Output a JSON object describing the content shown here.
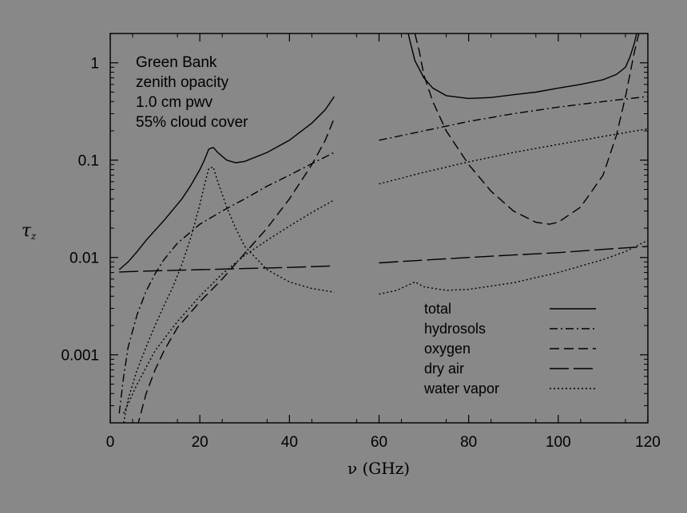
{
  "chart_data": {
    "type": "line",
    "xlabel": "ν  (GHz)",
    "ylabel": "τ",
    "ylabel_sub": "z",
    "y_scale": "log",
    "xlim": [
      0,
      120
    ],
    "ylim": [
      0.0002,
      2
    ],
    "x_ticks": [
      0,
      20,
      40,
      60,
      80,
      100,
      120
    ],
    "y_ticks": [
      {
        "value": 0.001,
        "label": "0.001"
      },
      {
        "value": 0.01,
        "label": "0.01"
      },
      {
        "value": 0.1,
        "label": "0.1"
      },
      {
        "value": 1,
        "label": "1"
      }
    ],
    "annotation": [
      "Green Bank",
      "zenith opacity",
      "1.0 cm pwv",
      "55% cloud cover"
    ],
    "legend_position": "bottom-right",
    "series": [
      {
        "name": "total",
        "dash": "solid",
        "segments": [
          [
            [
              2,
              0.0075
            ],
            [
              4,
              0.009
            ],
            [
              6,
              0.0115
            ],
            [
              8,
              0.015
            ],
            [
              10,
              0.019
            ],
            [
              12,
              0.024
            ],
            [
              14,
              0.031
            ],
            [
              16,
              0.04
            ],
            [
              18,
              0.055
            ],
            [
              20,
              0.08
            ],
            [
              21,
              0.1
            ],
            [
              22,
              0.13
            ],
            [
              23,
              0.135
            ],
            [
              24,
              0.12
            ],
            [
              26,
              0.1
            ],
            [
              28,
              0.094
            ],
            [
              30,
              0.097
            ],
            [
              35,
              0.12
            ],
            [
              40,
              0.16
            ],
            [
              45,
              0.24
            ],
            [
              48,
              0.33
            ],
            [
              50,
              0.45
            ]
          ],
          [
            [
              66.5,
              2.0
            ],
            [
              67,
              1.6
            ],
            [
              68,
              1.05
            ],
            [
              70,
              0.7
            ],
            [
              72,
              0.55
            ],
            [
              75,
              0.46
            ],
            [
              80,
              0.43
            ],
            [
              85,
              0.44
            ],
            [
              90,
              0.47
            ],
            [
              95,
              0.5
            ],
            [
              100,
              0.55
            ],
            [
              105,
              0.6
            ],
            [
              110,
              0.67
            ],
            [
              113,
              0.76
            ],
            [
              115,
              0.9
            ],
            [
              116,
              1.15
            ],
            [
              117,
              1.6
            ],
            [
              117.5,
              2.0
            ]
          ]
        ]
      },
      {
        "name": "hydrosols",
        "dash": "10,4,2,4",
        "segments": [
          [
            [
              2,
              0.00025
            ],
            [
              3,
              0.0006
            ],
            [
              4,
              0.0012
            ],
            [
              6,
              0.0026
            ],
            [
              8,
              0.0045
            ],
            [
              10,
              0.0068
            ],
            [
              12,
              0.0095
            ],
            [
              15,
              0.014
            ],
            [
              20,
              0.022
            ],
            [
              25,
              0.03
            ],
            [
              30,
              0.04
            ],
            [
              35,
              0.054
            ],
            [
              40,
              0.07
            ],
            [
              45,
              0.092
            ],
            [
              50,
              0.12
            ]
          ],
          [
            [
              60,
              0.16
            ],
            [
              70,
              0.2
            ],
            [
              80,
              0.25
            ],
            [
              90,
              0.3
            ],
            [
              100,
              0.35
            ],
            [
              110,
              0.4
            ],
            [
              120,
              0.45
            ]
          ]
        ]
      },
      {
        "name": "oxygen",
        "dash": "12,6",
        "segments": [
          [
            [
              6,
              0.00018
            ],
            [
              8,
              0.0004
            ],
            [
              10,
              0.0007
            ],
            [
              12,
              0.0011
            ],
            [
              15,
              0.0019
            ],
            [
              20,
              0.0035
            ],
            [
              25,
              0.006
            ],
            [
              30,
              0.011
            ],
            [
              35,
              0.02
            ],
            [
              40,
              0.04
            ],
            [
              45,
              0.09
            ],
            [
              48,
              0.16
            ],
            [
              50,
              0.27
            ]
          ],
          [
            [
              68,
              2.0
            ],
            [
              69,
              1.3
            ],
            [
              70,
              0.75
            ],
            [
              72,
              0.4
            ],
            [
              75,
              0.2
            ],
            [
              80,
              0.09
            ],
            [
              85,
              0.048
            ],
            [
              90,
              0.03
            ],
            [
              95,
              0.023
            ],
            [
              98,
              0.022
            ],
            [
              100,
              0.023
            ],
            [
              105,
              0.033
            ],
            [
              110,
              0.07
            ],
            [
              113,
              0.18
            ],
            [
              115,
              0.45
            ],
            [
              117,
              1.3
            ],
            [
              118,
              2.0
            ]
          ]
        ]
      },
      {
        "name": "dry air",
        "dash": "24,6",
        "segments": [
          [
            [
              2,
              0.0071
            ],
            [
              10,
              0.0073
            ],
            [
              20,
              0.0075
            ],
            [
              30,
              0.0077
            ],
            [
              40,
              0.0079
            ],
            [
              50,
              0.0082
            ]
          ],
          [
            [
              60,
              0.0088
            ],
            [
              70,
              0.0094
            ],
            [
              80,
              0.01
            ],
            [
              90,
              0.0106
            ],
            [
              100,
              0.0112
            ],
            [
              110,
              0.0121
            ],
            [
              120,
              0.013
            ]
          ]
        ]
      },
      {
        "name": "water vapor",
        "dash": "2,3",
        "segments": [
          [
            [
              3,
              0.0002
            ],
            [
              4,
              0.00035
            ],
            [
              6,
              0.0007
            ],
            [
              8,
              0.0012
            ],
            [
              10,
              0.002
            ],
            [
              12,
              0.0032
            ],
            [
              14,
              0.005
            ],
            [
              16,
              0.0085
            ],
            [
              18,
              0.016
            ],
            [
              20,
              0.035
            ],
            [
              21,
              0.055
            ],
            [
              22,
              0.082
            ],
            [
              23,
              0.085
            ],
            [
              24,
              0.06
            ],
            [
              26,
              0.033
            ],
            [
              28,
              0.02
            ],
            [
              30,
              0.013
            ],
            [
              35,
              0.0075
            ],
            [
              40,
              0.0056
            ],
            [
              45,
              0.0048
            ],
            [
              50,
              0.0044
            ]
          ],
          [
            [
              3,
              0.00025
            ],
            [
              6,
              0.0005
            ],
            [
              10,
              0.0011
            ],
            [
              15,
              0.0022
            ],
            [
              20,
              0.004
            ],
            [
              25,
              0.0068
            ],
            [
              30,
              0.0105
            ],
            [
              35,
              0.015
            ],
            [
              40,
              0.021
            ],
            [
              45,
              0.029
            ],
            [
              50,
              0.039
            ]
          ],
          [
            [
              60,
              0.0042
            ],
            [
              64,
              0.0046
            ],
            [
              68,
              0.0056
            ],
            [
              70,
              0.005
            ],
            [
              75,
              0.0046
            ],
            [
              80,
              0.0047
            ],
            [
              90,
              0.0055
            ],
            [
              100,
              0.007
            ],
            [
              110,
              0.0095
            ],
            [
              115,
              0.0115
            ],
            [
              120,
              0.015
            ]
          ],
          [
            [
              60,
              0.057
            ],
            [
              70,
              0.075
            ],
            [
              80,
              0.096
            ],
            [
              90,
              0.12
            ],
            [
              100,
              0.145
            ],
            [
              110,
              0.175
            ],
            [
              120,
              0.21
            ]
          ]
        ]
      }
    ]
  }
}
